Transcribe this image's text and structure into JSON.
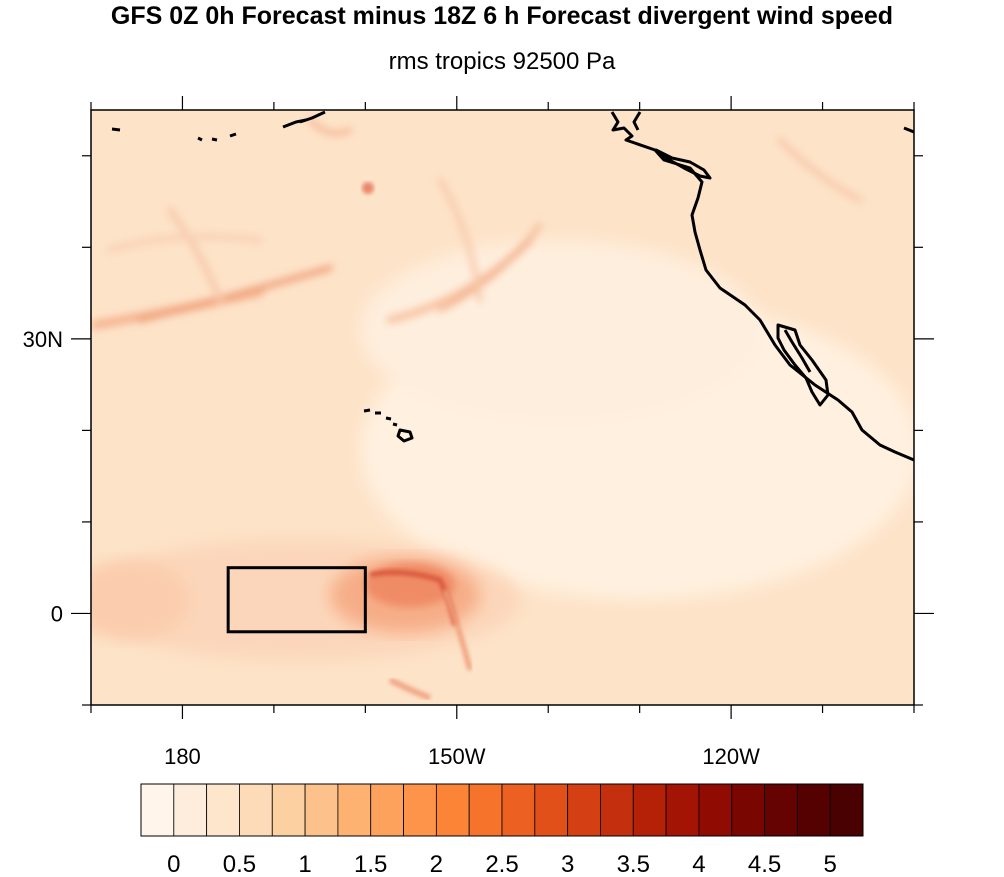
{
  "title": "GFS 0Z 0h Forecast minus 18Z 6 h Forecast divergent wind speed",
  "subtitle": "rms tropics 92500 Pa",
  "map": {
    "projection": "cylindrical equidistant",
    "lon_range": [
      170,
      260
    ],
    "lat_range": [
      -10,
      55
    ],
    "x_tick_labels": [
      {
        "lon": 180,
        "label": "180"
      },
      {
        "lon": 210,
        "label": "150W"
      },
      {
        "lon": 240,
        "label": "120W"
      }
    ],
    "y_tick_labels": [
      {
        "lat": 30,
        "label": "30N"
      },
      {
        "lat": 0,
        "label": "0"
      }
    ],
    "highlight_box": {
      "lon": [
        185,
        200
      ],
      "lat": [
        -2,
        5
      ]
    },
    "colors": {
      "background_field": "#fde3c8",
      "low": "#fff4e8",
      "high": "#c43a2c",
      "coastline": "#000000"
    }
  },
  "colorbar": {
    "levels": [
      "0",
      "0.5",
      "1",
      "1.5",
      "2",
      "2.5",
      "3",
      "3.5",
      "4",
      "4.5",
      "5"
    ],
    "colors": [
      "#fff5eb",
      "#feeddc",
      "#fee6cd",
      "#fddbb8",
      "#fdd0a2",
      "#fdc28b",
      "#fdb272",
      "#fda25c",
      "#fd9449",
      "#fb8437",
      "#f5732b",
      "#ec6122",
      "#e2501a",
      "#d43f14",
      "#c4300d",
      "#b52107",
      "#a41404",
      "#900c03",
      "#7a0602",
      "#650202",
      "#560101",
      "#4a0101"
    ]
  }
}
